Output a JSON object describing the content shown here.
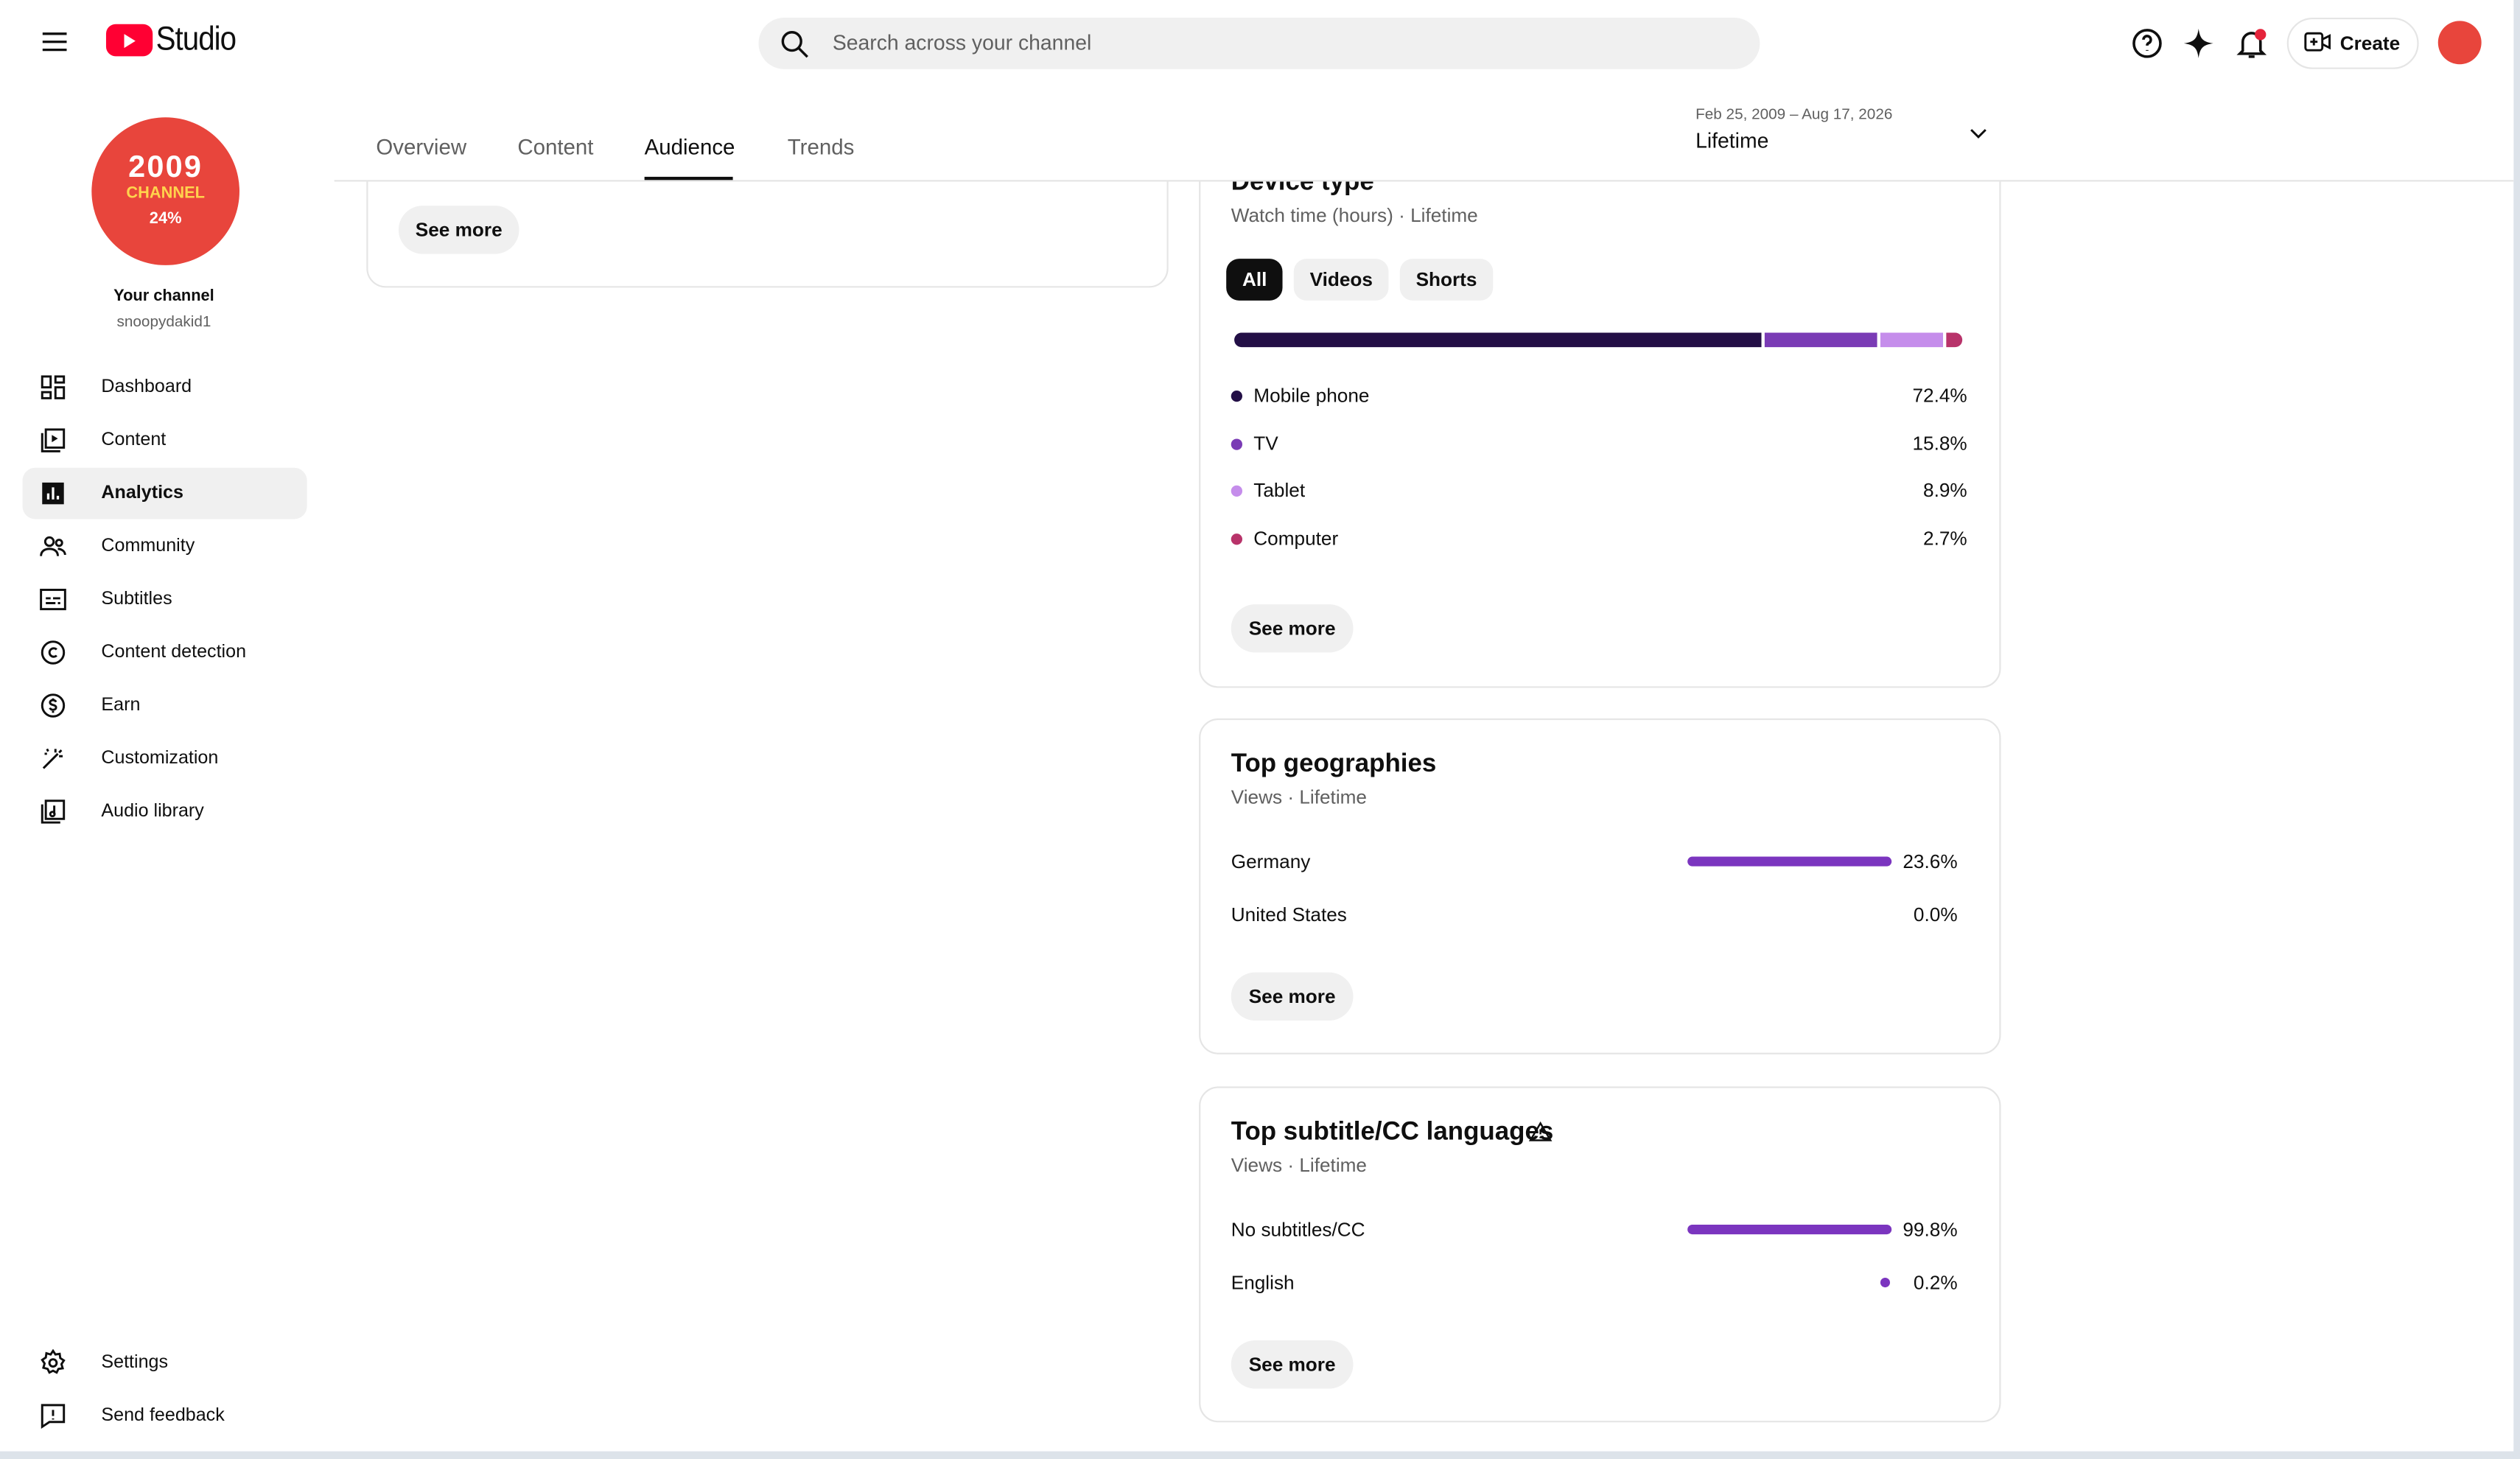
{
  "header": {
    "logo": "Studio",
    "search_placeholder": "Search across your channel",
    "create": "Create"
  },
  "sidebar": {
    "avatar": [
      "2009",
      "CHANNEL",
      "24%"
    ],
    "channel_label": "Your channel",
    "channel_handle": "snoopydakid1",
    "nav": [
      "Dashboard",
      "Content",
      "Analytics",
      "Community",
      "Subtitles",
      "Content detection",
      "Earn",
      "Customization",
      "Audio library"
    ],
    "selected_nav": 2,
    "footer_nav": [
      "Settings",
      "Send feedback"
    ]
  },
  "tabs": {
    "items": [
      "Overview",
      "Content",
      "Audience",
      "Trends"
    ],
    "selected": 2
  },
  "date_range": {
    "range": "Feb 25, 2009 – Aug 17, 2026",
    "period": "Lifetime"
  },
  "left_card": {
    "button": "See more"
  },
  "device_type": {
    "title": "Device type",
    "subtitle": "Watch time (hours) · Lifetime",
    "filters": [
      "All",
      "Videos",
      "Shorts"
    ],
    "selected_filter": 0,
    "items": [
      {
        "label": "Mobile phone",
        "value": 72.4,
        "value_label": "72.4%",
        "color": "#230f46"
      },
      {
        "label": "TV",
        "value": 15.8,
        "value_label": "15.8%",
        "color": "#7a3bb5"
      },
      {
        "label": "Tablet",
        "value": 8.9,
        "value_label": "8.9%",
        "color": "#c58deb"
      },
      {
        "label": "Computer",
        "value": 2.7,
        "value_label": "2.7%",
        "color": "#b8336a"
      }
    ],
    "button": "See more"
  },
  "top_geographies": {
    "title": "Top geographies",
    "subtitle": "Views · Lifetime",
    "color": "#7b35bf",
    "items": [
      {
        "label": "Germany",
        "value": 23.6,
        "value_label": "23.6%"
      },
      {
        "label": "United States",
        "value": 0.0,
        "value_label": "0.0%"
      }
    ],
    "button": "See more"
  },
  "top_subtitle_languages": {
    "title": "Top subtitle/CC languages",
    "subtitle": "Views · Lifetime",
    "color": "#7b35bf",
    "items": [
      {
        "label": "No subtitles/CC",
        "value": 99.8,
        "value_label": "99.8%"
      },
      {
        "label": "English",
        "value": 0.2,
        "value_label": "0.2%"
      }
    ],
    "button": "See more"
  }
}
